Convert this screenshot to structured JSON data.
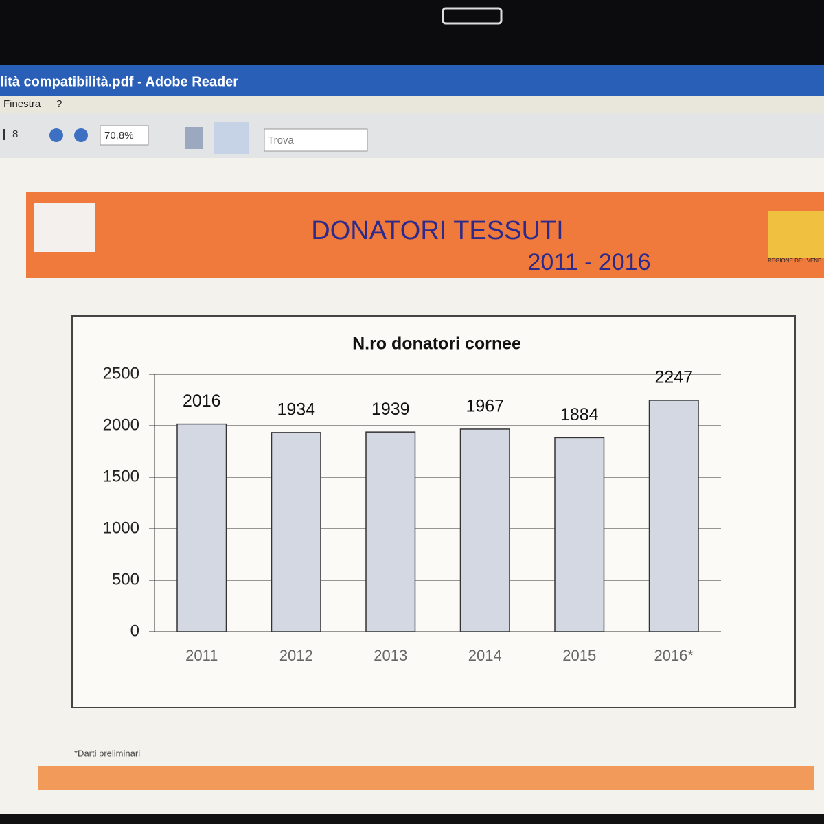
{
  "window": {
    "title": "lità compatibilità.pdf - Adobe Reader",
    "menu": [
      "Finestra",
      "?"
    ]
  },
  "toolbar": {
    "page_count": "8",
    "zoom": "70,8%",
    "search": "Trova"
  },
  "slide": {
    "title": "DONATORI TESSUTI",
    "subtitle": "2011 - 2016",
    "logo_text": "REGIONE DEL VENE",
    "footnote": "*Darti preliminari"
  },
  "chart_data": {
    "type": "bar",
    "title": "N.ro donatori cornee",
    "categories": [
      "2011",
      "2012",
      "2013",
      "2014",
      "2015",
      "2016*"
    ],
    "values": [
      2016,
      1934,
      1939,
      1967,
      1884,
      2247
    ],
    "color": "#d4d8e2",
    "ylim": [
      0,
      2500
    ],
    "yticks": [
      0,
      500,
      1000,
      1500,
      2000,
      2500
    ],
    "grid": true
  }
}
